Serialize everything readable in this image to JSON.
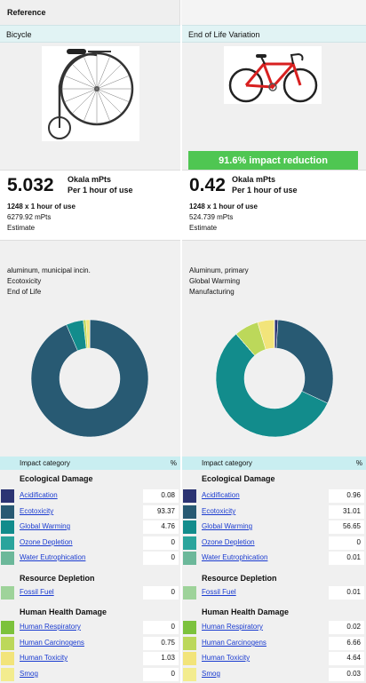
{
  "header": {
    "reference_label": "Reference"
  },
  "left": {
    "product_name": "Bicycle",
    "image_icon": "penny-farthing-bicycle",
    "score": "5.032",
    "unit_line1": "Okala mPts",
    "unit_line2": "Per 1 hour of use",
    "quantity": "1248 x 1 hour of use",
    "total": "6279.92 mPts",
    "method": "Estimate",
    "hotspot": [
      "aluminum, municipal incin.",
      "Ecotoxicity",
      "End of Life"
    ]
  },
  "right": {
    "variation_label": "End of Life Variation",
    "image_icon": "road-bicycle",
    "reduction": "91.6% impact reduction",
    "score": "0.42",
    "unit_line1": "Okala mPts",
    "unit_line2": "Per 1 hour of use",
    "quantity": "1248 x 1 hour of use",
    "total": "524.739 mPts",
    "method": "Estimate",
    "hotspot": [
      "Aluminum, primary",
      "Global Warming",
      "Manufacturing"
    ]
  },
  "table": {
    "col_category": "Impact category",
    "col_percent": "%",
    "groups": {
      "ecological": "Ecological Damage",
      "resource": "Resource Depletion",
      "human": "Human Health Damage"
    },
    "categories": [
      {
        "name": "Acidification",
        "color": "#2c3473",
        "left": "0.08",
        "right": "0.96"
      },
      {
        "name": "Ecotoxicity",
        "color": "#285a73",
        "left": "93.37",
        "right": "31.01"
      },
      {
        "name": "Global Warming",
        "color": "#128c8c",
        "left": "4.76",
        "right": "56.65"
      },
      {
        "name": "Ozone Depletion",
        "color": "#2aa49c",
        "left": "0",
        "right": "0"
      },
      {
        "name": "Water Eutrophication",
        "color": "#6cb89a",
        "left": "0",
        "right": "0.01"
      },
      {
        "name": "Fossil Fuel",
        "color": "#9ed39a",
        "left": "0",
        "right": "0.01"
      },
      {
        "name": "Human Respiratory",
        "color": "#7cc23c",
        "left": "0",
        "right": "0.02"
      },
      {
        "name": "Human Carcinogens",
        "color": "#bcd85a",
        "left": "0.75",
        "right": "6.66"
      },
      {
        "name": "Human Toxicity",
        "color": "#f2e47a",
        "left": "1.03",
        "right": "4.64"
      },
      {
        "name": "Smog",
        "color": "#f3ec8e",
        "left": "0",
        "right": "0.03"
      }
    ]
  },
  "chart_data": [
    {
      "type": "pie",
      "donut": true,
      "categories": [
        "Acidification",
        "Ecotoxicity",
        "Global Warming",
        "Ozone Depletion",
        "Water Eutrophication",
        "Fossil Fuel",
        "Human Respiratory",
        "Human Carcinogens",
        "Human Toxicity",
        "Smog"
      ],
      "values": [
        0.08,
        93.37,
        4.76,
        0,
        0,
        0,
        0,
        0.75,
        1.03,
        0
      ],
      "colors": [
        "#2c3473",
        "#285a73",
        "#128c8c",
        "#2aa49c",
        "#6cb89a",
        "#9ed39a",
        "#7cc23c",
        "#bcd85a",
        "#f2e47a",
        "#f3ec8e"
      ]
    },
    {
      "type": "pie",
      "donut": true,
      "categories": [
        "Acidification",
        "Ecotoxicity",
        "Global Warming",
        "Ozone Depletion",
        "Water Eutrophication",
        "Fossil Fuel",
        "Human Respiratory",
        "Human Carcinogens",
        "Human Toxicity",
        "Smog"
      ],
      "values": [
        0.96,
        31.01,
        56.65,
        0,
        0.01,
        0.01,
        0.02,
        6.66,
        4.64,
        0.03
      ],
      "colors": [
        "#2c3473",
        "#285a73",
        "#128c8c",
        "#2aa49c",
        "#6cb89a",
        "#9ed39a",
        "#7cc23c",
        "#bcd85a",
        "#f2e47a",
        "#f3ec8e"
      ]
    }
  ]
}
